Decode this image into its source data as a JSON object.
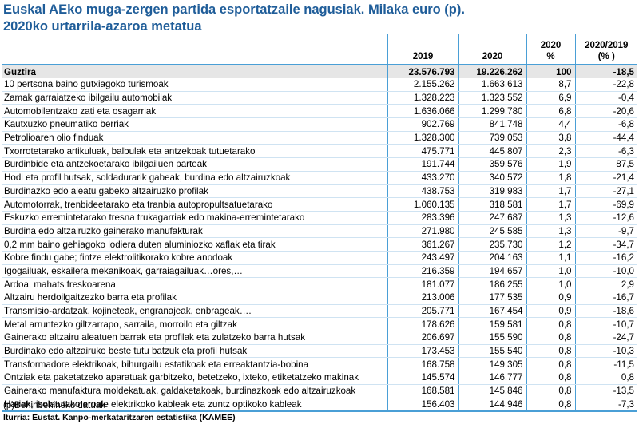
{
  "title_line1": "Euskal AEko muga-zergen partida esportatzaile nagusiak. Milaka euro (p).",
  "title_line2": "2020ko urtarrila-azaroa metatua",
  "headers": {
    "col_2019": "2019",
    "col_2020": "2020",
    "col_pct_top": "2020",
    "col_pct_bottom": "%",
    "col_var_top": "2020/2019",
    "col_var_bottom": "(% )"
  },
  "total": {
    "label": "Guztira",
    "v2019": "23.576.793",
    "v2020": "19.226.262",
    "pct": "100",
    "var": "-18,5"
  },
  "rows": [
    {
      "label": "10 pertsona baino gutxiagoko turismoak",
      "v2019": "2.155.262",
      "v2020": "1.663.613",
      "pct": "8,7",
      "var": "-22,8"
    },
    {
      "label": "Zamak garraiatzeko ibilgailu automobilak",
      "v2019": "1.328.223",
      "v2020": "1.323.552",
      "pct": "6,9",
      "var": "-0,4"
    },
    {
      "label": "Automobilentzako zati eta osagarriak",
      "v2019": "1.636.066",
      "v2020": "1.299.780",
      "pct": "6,8",
      "var": "-20,6"
    },
    {
      "label": "Kautxuzko pneumatiko berriak",
      "v2019": "902.769",
      "v2020": "841.748",
      "pct": "4,4",
      "var": "-6,8"
    },
    {
      "label": "Petrolioaren olio finduak",
      "v2019": "1.328.300",
      "v2020": "739.053",
      "pct": "3,8",
      "var": "-44,4"
    },
    {
      "label": "Txorrotetarako artikuluak, balbulak eta antzekoak tutuetarako",
      "v2019": "475.771",
      "v2020": "445.807",
      "pct": "2,3",
      "var": "-6,3"
    },
    {
      "label": "Burdinbide eta antzekoetarako ibilgailuen parteak",
      "v2019": "191.744",
      "v2020": "359.576",
      "pct": "1,9",
      "var": "87,5"
    },
    {
      "label": "Hodi eta profil hutsak, soldadurarik gabeak, burdina edo altzairuzkoak",
      "v2019": "433.270",
      "v2020": "340.572",
      "pct": "1,8",
      "var": "-21,4"
    },
    {
      "label": "Burdinazko edo aleatu gabeko altzairuzko profilak",
      "v2019": "438.753",
      "v2020": "319.983",
      "pct": "1,7",
      "var": "-27,1"
    },
    {
      "label": "Automotorrak, trenbideetarako eta tranbia autopropultsatuetarako",
      "v2019": "1.060.135",
      "v2020": "318.581",
      "pct": "1,7",
      "var": "-69,9"
    },
    {
      "label": "Eskuzko erremintetarako tresna trukagarriak edo  makina-erremintetarako",
      "v2019": "283.396",
      "v2020": "247.687",
      "pct": "1,3",
      "var": "-12,6"
    },
    {
      "label": "Burdina edo altzairuzko gainerako manufakturak",
      "v2019": "271.980",
      "v2020": "245.585",
      "pct": "1,3",
      "var": "-9,7"
    },
    {
      "label": "0,2 mm baino gehiagoko lodiera duten aluminiozko xaflak eta tirak",
      "v2019": "361.267",
      "v2020": "235.730",
      "pct": "1,2",
      "var": "-34,7"
    },
    {
      "label": "Kobre findu gabe; fintze elektrolitikorako kobre anodoak",
      "v2019": "243.497",
      "v2020": "204.163",
      "pct": "1,1",
      "var": "-16,2"
    },
    {
      "label": "Igogailuak, eskailera mekanikoak, garraiagailuak…ores,…",
      "v2019": "216.359",
      "v2020": "194.657",
      "pct": "1,0",
      "var": "-10,0"
    },
    {
      "label": "Ardoa, mahats freskoarena",
      "v2019": "181.077",
      "v2020": "186.255",
      "pct": "1,0",
      "var": "2,9"
    },
    {
      "label": "Altzairu herdoilgaitzezko barra eta profilak",
      "v2019": "213.006",
      "v2020": "177.535",
      "pct": "0,9",
      "var": "-16,7"
    },
    {
      "label": "Transmisio-ardatzak, kojineteak, engranajeak, enbrageak….",
      "v2019": "205.771",
      "v2020": "167.454",
      "pct": "0,9",
      "var": "-18,6"
    },
    {
      "label": "Metal arruntezko giltzarrapo, sarraila, morroilo eta giltzak",
      "v2019": "178.626",
      "v2020": "159.581",
      "pct": "0,8",
      "var": "-10,7"
    },
    {
      "label": "Gainerako altzairu aleatuen barrak eta profilak eta zulatzeko barra hutsak",
      "v2019": "206.697",
      "v2020": "155.590",
      "pct": "0,8",
      "var": "-24,7"
    },
    {
      "label": "Burdinako edo altzairuko beste tutu batzuk eta profil hutsak",
      "v2019": "173.453",
      "v2020": "155.540",
      "pct": "0,8",
      "var": "-10,3"
    },
    {
      "label": "Transformadore elektrikoak, bihurgailu estatikoak eta erreaktantzia-bobina",
      "v2019": "168.758",
      "v2020": "149.305",
      "pct": "0,8",
      "var": "-11,5"
    },
    {
      "label": "Ontziak eta paketatzeko aparatuak garbitzeko, betetzeko, ixteko, etiketatzeko makinak",
      "v2019": "145.574",
      "v2020": "146.777",
      "pct": "0,8",
      "var": "0,8"
    },
    {
      "label": "Gainerako manufaktura moldekatuak, galdaketakoak, burdinazkoak edo altzairuzkoak",
      "v2019": "168.581",
      "v2020": "145.846",
      "pct": "0,8",
      "var": "-13,5"
    },
    {
      "label": "Hariak, isolatutako eroale elektrikoko kableak eta zuntz optikoko kableak",
      "v2019": "156.403",
      "v2020": "144.946",
      "pct": "0,8",
      "var": "-7,3"
    }
  ],
  "footnote": "(p)Behinbehineko datuak",
  "source": "Iturria: Eustat. Kanpo-merkataritzaren estatistika (KAMEE)"
}
